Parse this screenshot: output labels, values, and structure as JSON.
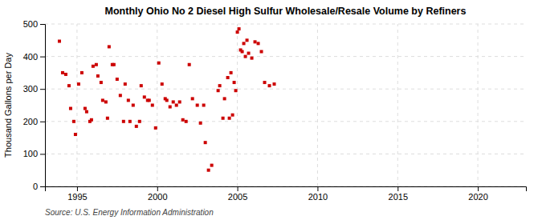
{
  "chart_data": {
    "type": "scatter",
    "title": "Monthly Ohio No 2 Diesel High Sulfur Wholesale/Resale Volume by Refiners",
    "ylabel": "Thousand Gallons per Day",
    "annotations": [
      "Source: U.S. Energy Information Administration"
    ],
    "color": "#cc0000",
    "marker": "square",
    "grid": true,
    "xlim": [
      1993,
      2023
    ],
    "ylim": [
      0,
      500
    ],
    "xticks": [
      1995,
      2000,
      2005,
      2010,
      2015,
      2020
    ],
    "yticks": [
      0,
      100,
      200,
      300,
      400,
      500
    ],
    "x": [
      1993.9,
      1994.1,
      1994.3,
      1994.5,
      1994.6,
      1994.8,
      1994.9,
      1995.1,
      1995.3,
      1995.5,
      1995.6,
      1995.8,
      1995.9,
      1996.0,
      1996.2,
      1996.3,
      1996.5,
      1996.6,
      1996.8,
      1996.9,
      1997.0,
      1997.2,
      1997.3,
      1997.5,
      1997.7,
      1997.9,
      1998.0,
      1998.2,
      1998.3,
      1998.5,
      1998.7,
      1998.9,
      1999.0,
      1999.2,
      1999.4,
      1999.5,
      1999.7,
      1999.9,
      2000.1,
      2000.3,
      2000.5,
      2000.6,
      2000.8,
      2001.0,
      2001.2,
      2001.4,
      2001.6,
      2001.8,
      2002.0,
      2002.2,
      2002.5,
      2002.7,
      2002.9,
      2003.0,
      2003.2,
      2003.4,
      2003.8,
      2003.9,
      2004.1,
      2004.2,
      2004.4,
      2004.5,
      2004.6,
      2004.7,
      2004.8,
      2004.9,
      2005.0,
      2005.1,
      2005.2,
      2005.3,
      2005.4,
      2005.5,
      2005.6,
      2005.7,
      2005.9,
      2006.1,
      2006.3,
      2006.5,
      2006.7,
      2007.0,
      2007.3
    ],
    "y": [
      447,
      350,
      345,
      310,
      240,
      200,
      160,
      315,
      350,
      240,
      230,
      200,
      205,
      370,
      375,
      340,
      320,
      265,
      260,
      210,
      430,
      375,
      375,
      330,
      280,
      200,
      315,
      265,
      200,
      250,
      185,
      200,
      310,
      275,
      265,
      265,
      250,
      180,
      380,
      315,
      270,
      265,
      245,
      260,
      250,
      260,
      205,
      200,
      375,
      270,
      250,
      195,
      250,
      135,
      50,
      65,
      295,
      310,
      210,
      270,
      335,
      210,
      350,
      220,
      320,
      295,
      475,
      485,
      420,
      415,
      440,
      400,
      450,
      410,
      395,
      445,
      440,
      415,
      320,
      310,
      315
    ]
  }
}
